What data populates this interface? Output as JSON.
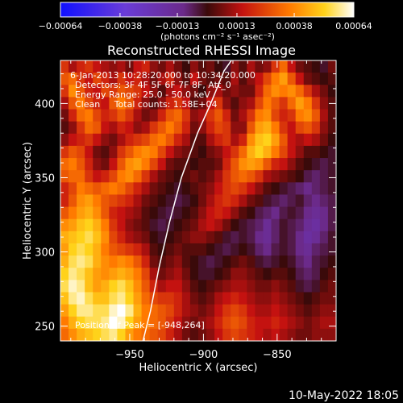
{
  "chart_data": {
    "type": "heatmap",
    "title": "Reconstructed RHESSI Image",
    "xlabel": "Heliocentric X (arcsec)",
    "ylabel": "Heliocentric Y (arcsec)",
    "xlim": [
      -997,
      -810
    ],
    "ylim": [
      240,
      429
    ],
    "xticks": [
      -950,
      -900,
      -850
    ],
    "yticks": [
      250,
      300,
      350,
      400
    ],
    "colorbar": {
      "ticks": [
        "-0.00064",
        "-0.00038",
        "-0.00013",
        "0.00013",
        "0.00038",
        "0.00064"
      ],
      "unit_label": "(photons cm⁻² s⁻¹ asec⁻²)",
      "range": [
        -0.00064,
        0.00064
      ],
      "colormap": "blue-purple-red-orange-yellow-white"
    },
    "annotations": [
      "6-Jan-2013 10:28:20.000 to 10:34:20.000",
      "Detectors: 3F 4F 5F 6F 7F 8F, Att_0",
      "Energy Range: 25.0 - 50.0 keV",
      "Clean     Total counts: 1.58E+04"
    ],
    "peak_label": "Position of Peak = [-948,264]",
    "peak_position": [
      -948,
      264
    ],
    "limb_arc": [
      [
        -941,
        240
      ],
      [
        -936,
        260
      ],
      [
        -930,
        290
      ],
      [
        -923,
        320
      ],
      [
        -915,
        350
      ],
      [
        -904,
        380
      ],
      [
        -895,
        400
      ],
      [
        -886,
        422
      ],
      [
        -881,
        429
      ]
    ],
    "intensity_grid": [
      [
        0.35,
        0.2,
        0.3,
        0.35,
        0.25,
        0.2,
        0.15,
        0.2,
        0.1,
        0.25,
        0.3,
        0.15,
        0.1,
        0.2,
        0.1,
        0.0,
        0.15,
        0.05,
        0.1,
        0.0,
        -0.05,
        0.15,
        0.05,
        0.2,
        0.1,
        0.15,
        0.35,
        0.5,
        0.25,
        0.1,
        0.05,
        0.0,
        -0.05,
        0.1
      ],
      [
        0.45,
        0.5,
        0.35,
        0.25,
        0.4,
        0.3,
        0.2,
        0.35,
        0.25,
        0.3,
        0.2,
        0.1,
        0.2,
        0.3,
        0.15,
        0.05,
        0.25,
        0.1,
        0.05,
        0.1,
        0.05,
        0.2,
        0.05,
        0.15,
        0.25,
        0.4,
        0.55,
        0.65,
        0.45,
        0.25,
        0.1,
        0.05,
        0.0,
        0.05
      ],
      [
        0.35,
        0.6,
        0.45,
        0.3,
        0.25,
        0.4,
        0.35,
        0.45,
        0.4,
        0.35,
        0.25,
        0.15,
        0.05,
        0.2,
        0.25,
        0.15,
        0.1,
        0.0,
        0.15,
        0.2,
        0.1,
        0.15,
        0.1,
        0.1,
        0.3,
        0.5,
        0.6,
        0.55,
        0.6,
        0.5,
        0.35,
        0.2,
        0.1,
        0.0
      ],
      [
        0.2,
        0.45,
        0.55,
        0.4,
        0.3,
        0.25,
        0.45,
        0.55,
        0.45,
        0.3,
        0.15,
        0.05,
        0.15,
        0.3,
        0.35,
        0.25,
        0.05,
        0.1,
        0.25,
        0.35,
        0.15,
        0.05,
        0.15,
        0.2,
        0.4,
        0.55,
        0.45,
        0.35,
        0.5,
        0.65,
        0.55,
        0.35,
        0.15,
        0.05
      ],
      [
        0.1,
        0.3,
        0.5,
        0.55,
        0.4,
        0.3,
        0.35,
        0.45,
        0.35,
        0.2,
        0.1,
        0.15,
        0.3,
        0.45,
        0.5,
        0.35,
        0.15,
        0.2,
        0.35,
        0.45,
        0.3,
        0.1,
        0.2,
        0.35,
        0.55,
        0.6,
        0.4,
        0.3,
        0.35,
        0.55,
        0.6,
        0.45,
        0.2,
        0.05
      ],
      [
        0.05,
        0.15,
        0.35,
        0.5,
        0.45,
        0.25,
        0.2,
        0.3,
        0.25,
        0.15,
        0.2,
        0.35,
        0.45,
        0.55,
        0.45,
        0.3,
        0.1,
        0.15,
        0.3,
        0.4,
        0.35,
        0.15,
        0.15,
        0.45,
        0.65,
        0.7,
        0.55,
        0.35,
        0.25,
        0.4,
        0.45,
        0.35,
        0.15,
        0.05
      ],
      [
        0.15,
        0.25,
        0.3,
        0.35,
        0.25,
        0.15,
        0.1,
        0.2,
        0.3,
        0.35,
        0.4,
        0.5,
        0.55,
        0.45,
        0.3,
        0.2,
        0.05,
        0.05,
        0.2,
        0.3,
        0.35,
        0.2,
        0.3,
        0.6,
        0.75,
        0.8,
        0.65,
        0.45,
        0.25,
        0.2,
        0.25,
        0.2,
        0.1,
        0.0
      ],
      [
        0.35,
        0.45,
        0.4,
        0.25,
        0.1,
        0.05,
        0.15,
        0.35,
        0.45,
        0.55,
        0.6,
        0.55,
        0.4,
        0.25,
        0.15,
        0.1,
        0.05,
        0.0,
        0.1,
        0.15,
        0.25,
        0.35,
        0.5,
        0.7,
        0.8,
        0.7,
        0.55,
        0.4,
        0.25,
        0.15,
        0.05,
        0.05,
        0.0,
        -0.05
      ],
      [
        0.5,
        0.55,
        0.45,
        0.3,
        0.15,
        0.1,
        0.25,
        0.45,
        0.6,
        0.65,
        0.55,
        0.4,
        0.25,
        0.1,
        0.05,
        0.05,
        0.0,
        0.05,
        0.05,
        0.1,
        0.3,
        0.45,
        0.6,
        0.65,
        0.6,
        0.45,
        0.3,
        0.25,
        0.15,
        0.05,
        0.0,
        -0.05,
        -0.1,
        -0.05
      ],
      [
        0.45,
        0.5,
        0.5,
        0.35,
        0.25,
        0.3,
        0.4,
        0.55,
        0.6,
        0.5,
        0.35,
        0.2,
        0.1,
        0.05,
        0.0,
        0.05,
        0.1,
        0.05,
        0.1,
        0.2,
        0.35,
        0.45,
        0.5,
        0.45,
        0.35,
        0.2,
        0.15,
        0.1,
        0.05,
        0.0,
        -0.1,
        -0.15,
        -0.1,
        -0.05
      ],
      [
        0.3,
        0.4,
        0.55,
        0.5,
        0.45,
        0.5,
        0.55,
        0.5,
        0.4,
        0.3,
        0.2,
        0.1,
        0.05,
        0.0,
        -0.05,
        0.0,
        0.05,
        0.1,
        0.15,
        0.25,
        0.35,
        0.4,
        0.35,
        0.25,
        0.15,
        0.05,
        0.0,
        -0.05,
        -0.1,
        -0.15,
        -0.2,
        -0.15,
        -0.1,
        -0.05
      ],
      [
        0.3,
        0.45,
        0.6,
        0.65,
        0.55,
        0.45,
        0.4,
        0.35,
        0.3,
        0.2,
        0.1,
        0.05,
        0.0,
        -0.05,
        -0.1,
        -0.05,
        0.0,
        0.1,
        0.2,
        0.3,
        0.35,
        0.3,
        0.2,
        0.1,
        0.05,
        -0.05,
        -0.1,
        -0.15,
        -0.1,
        -0.05,
        -0.15,
        -0.2,
        -0.15,
        -0.1
      ],
      [
        0.45,
        0.55,
        0.65,
        0.7,
        0.6,
        0.45,
        0.3,
        0.25,
        0.2,
        0.15,
        0.05,
        0.0,
        -0.05,
        -0.1,
        -0.05,
        0.0,
        0.05,
        0.15,
        0.25,
        0.3,
        0.25,
        0.15,
        0.05,
        0.0,
        -0.1,
        -0.15,
        -0.2,
        -0.1,
        -0.05,
        -0.1,
        -0.2,
        -0.25,
        -0.2,
        -0.1
      ],
      [
        0.6,
        0.65,
        0.75,
        0.8,
        0.7,
        0.55,
        0.35,
        0.25,
        0.15,
        0.1,
        0.05,
        -0.05,
        -0.1,
        -0.05,
        0.0,
        0.05,
        0.1,
        0.2,
        0.25,
        0.2,
        0.1,
        0.0,
        -0.05,
        -0.1,
        -0.15,
        -0.25,
        -0.15,
        -0.05,
        -0.1,
        -0.15,
        -0.25,
        -0.3,
        -0.2,
        -0.1
      ],
      [
        0.7,
        0.75,
        0.8,
        0.85,
        0.75,
        0.6,
        0.4,
        0.3,
        0.2,
        0.15,
        0.1,
        0.0,
        -0.05,
        0.0,
        0.05,
        0.1,
        0.15,
        0.15,
        0.1,
        0.05,
        -0.05,
        -0.1,
        -0.05,
        -0.1,
        -0.2,
        -0.25,
        -0.15,
        -0.05,
        -0.1,
        -0.2,
        -0.3,
        -0.25,
        -0.15,
        -0.05
      ],
      [
        0.65,
        0.8,
        0.85,
        0.8,
        0.7,
        0.55,
        0.45,
        0.4,
        0.35,
        0.3,
        0.2,
        0.05,
        0.0,
        0.05,
        0.1,
        0.05,
        0.05,
        0.05,
        0.0,
        -0.05,
        -0.1,
        -0.05,
        0.0,
        -0.05,
        -0.15,
        -0.2,
        -0.1,
        -0.05,
        -0.1,
        -0.2,
        -0.25,
        -0.15,
        -0.1,
        -0.05
      ],
      [
        0.7,
        0.85,
        0.9,
        0.85,
        0.7,
        0.6,
        0.55,
        0.6,
        0.55,
        0.45,
        0.3,
        0.1,
        0.05,
        0.1,
        0.15,
        0.05,
        0.0,
        -0.05,
        -0.1,
        -0.05,
        0.0,
        0.05,
        0.1,
        0.05,
        -0.05,
        -0.1,
        -0.05,
        0.0,
        -0.05,
        -0.15,
        -0.2,
        -0.1,
        -0.05,
        0.0
      ],
      [
        0.8,
        0.9,
        0.85,
        0.75,
        0.65,
        0.6,
        0.65,
        0.7,
        0.65,
        0.55,
        0.4,
        0.2,
        0.1,
        0.15,
        0.2,
        0.1,
        0.0,
        -0.05,
        -0.05,
        0.0,
        0.05,
        0.15,
        0.15,
        0.1,
        0.05,
        0.0,
        0.05,
        0.05,
        0.0,
        -0.1,
        -0.15,
        -0.1,
        0.0,
        0.05
      ],
      [
        0.85,
        0.95,
        0.9,
        0.75,
        0.65,
        0.7,
        0.8,
        0.85,
        0.75,
        0.6,
        0.45,
        0.3,
        0.2,
        0.25,
        0.25,
        0.15,
        0.05,
        0.0,
        0.05,
        0.1,
        0.15,
        0.2,
        0.2,
        0.15,
        0.1,
        0.1,
        0.15,
        0.1,
        0.05,
        -0.05,
        -0.1,
        -0.05,
        0.05,
        0.1
      ],
      [
        0.75,
        0.9,
        0.95,
        0.85,
        0.75,
        0.75,
        0.85,
        0.9,
        0.8,
        0.65,
        0.5,
        0.4,
        0.35,
        0.35,
        0.3,
        0.2,
        0.1,
        0.05,
        0.1,
        0.2,
        0.25,
        0.3,
        0.25,
        0.2,
        0.15,
        0.15,
        0.2,
        0.15,
        0.1,
        0.05,
        0.0,
        0.05,
        0.1,
        0.1
      ],
      [
        0.65,
        0.8,
        0.9,
        0.9,
        0.85,
        0.85,
        0.95,
        1.0,
        0.9,
        0.7,
        0.55,
        0.5,
        0.45,
        0.4,
        0.3,
        0.2,
        0.15,
        0.1,
        0.15,
        0.25,
        0.35,
        0.4,
        0.35,
        0.25,
        0.2,
        0.2,
        0.25,
        0.2,
        0.15,
        0.1,
        0.05,
        0.1,
        0.15,
        0.15
      ],
      [
        0.55,
        0.7,
        0.8,
        0.85,
        0.85,
        0.9,
        1.0,
        0.95,
        0.8,
        0.65,
        0.55,
        0.5,
        0.45,
        0.35,
        0.25,
        0.15,
        0.1,
        0.15,
        0.2,
        0.3,
        0.4,
        0.45,
        0.4,
        0.3,
        0.25,
        0.25,
        0.3,
        0.25,
        0.2,
        0.15,
        0.1,
        0.15,
        0.2,
        0.2
      ],
      [
        0.5,
        0.6,
        0.7,
        0.75,
        0.8,
        0.85,
        0.9,
        0.8,
        0.65,
        0.55,
        0.5,
        0.45,
        0.4,
        0.3,
        0.2,
        0.1,
        0.05,
        0.1,
        0.15,
        0.25,
        0.35,
        0.4,
        0.35,
        0.3,
        0.25,
        0.2,
        0.25,
        0.2,
        0.15,
        0.1,
        0.1,
        0.15,
        0.15,
        0.15
      ]
    ]
  },
  "footer": {
    "timestamp": "10-May-2022 18:05"
  }
}
